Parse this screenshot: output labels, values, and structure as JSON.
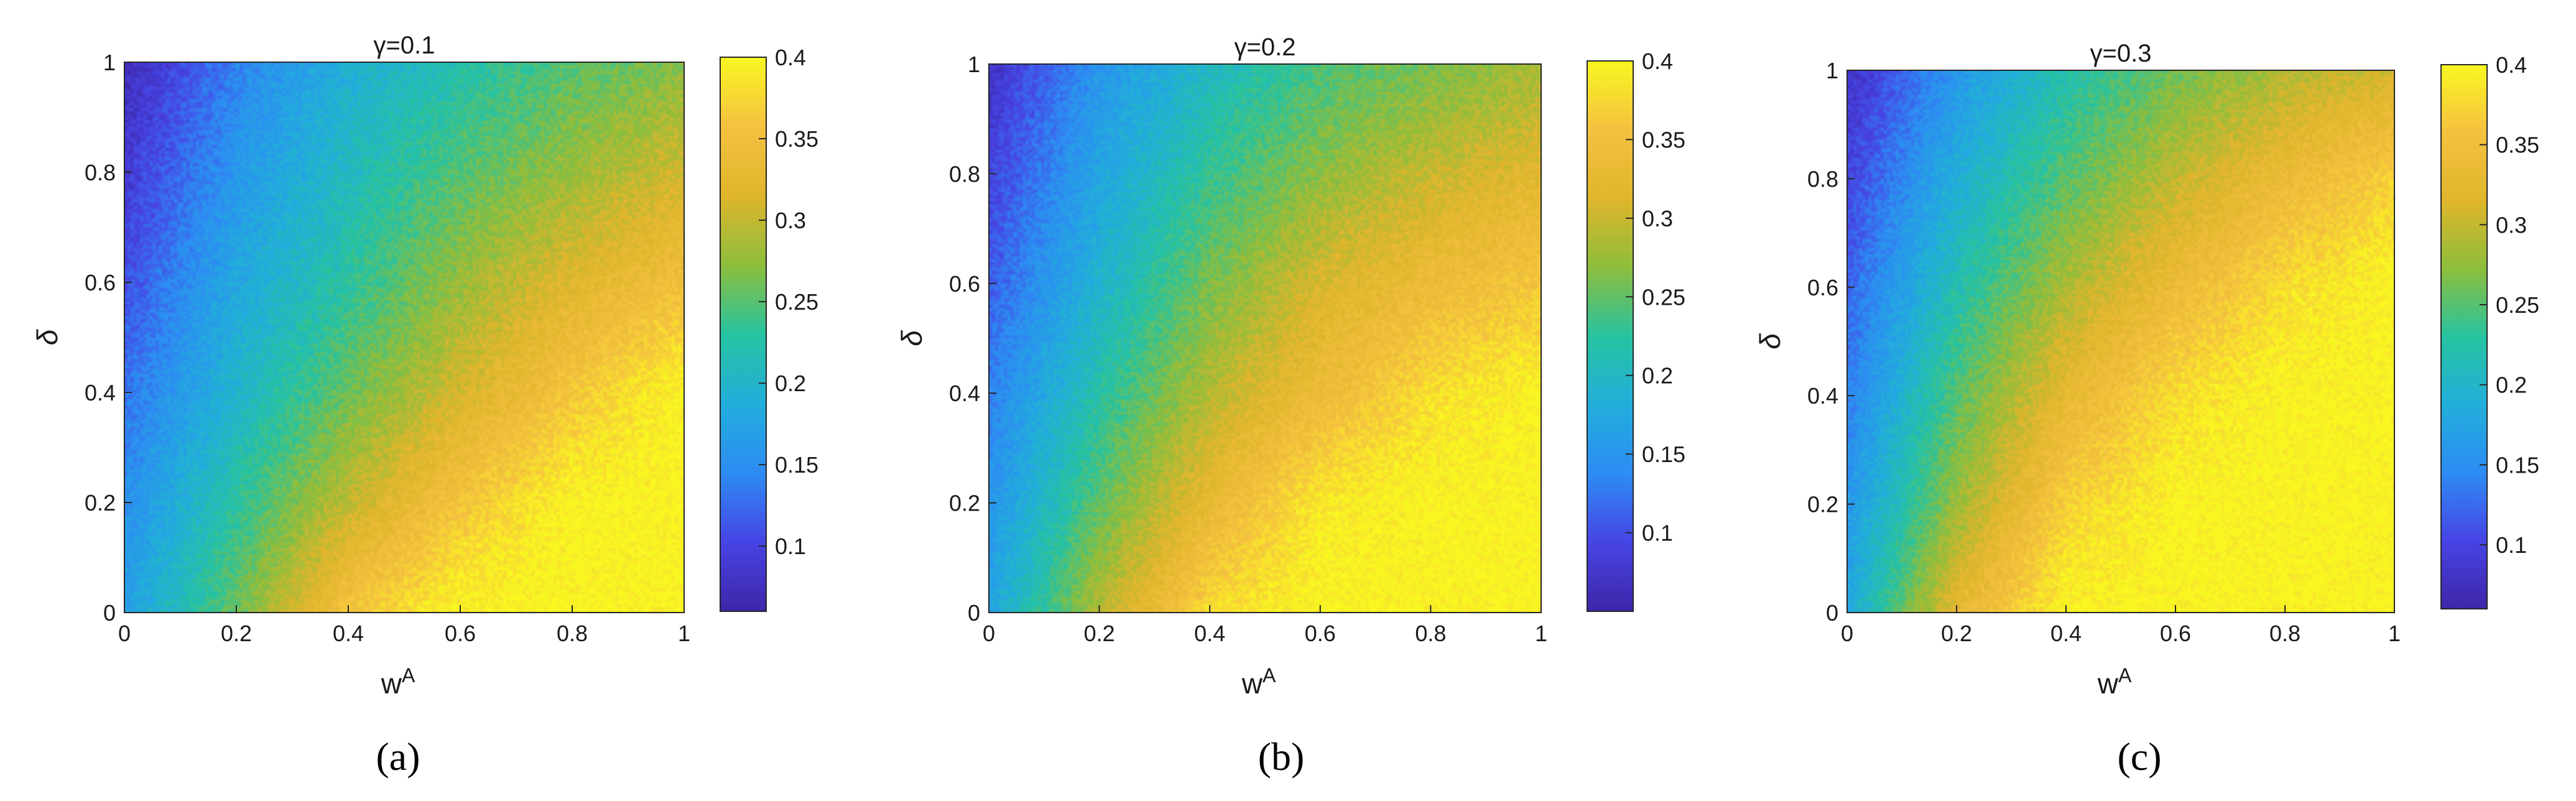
{
  "colors": {
    "colormap": "parula",
    "stops": [
      "#3e26a8",
      "#4744e5",
      "#2d8cf3",
      "#22aedb",
      "#27c3a0",
      "#8dbe3c",
      "#e0b52c",
      "#f5c140",
      "#f9f721"
    ]
  },
  "chart_data": [
    {
      "type": "heatmap",
      "title": "γ=0.1",
      "panel_label": "(a)",
      "xlabel": "w",
      "xlabel_sup": "A",
      "ylabel": "δ",
      "xlim": [
        0,
        1
      ],
      "ylim": [
        0,
        1
      ],
      "xticks": [
        "0",
        "0.2",
        "0.4",
        "0.6",
        "0.8",
        "1"
      ],
      "yticks": [
        "0",
        "0.2",
        "0.4",
        "0.6",
        "0.8",
        "1"
      ],
      "colorbar": {
        "range": [
          0.06,
          0.4
        ],
        "ticks": [
          "0.1",
          "0.15",
          "0.2",
          "0.25",
          "0.3",
          "0.35",
          "0.4"
        ]
      },
      "gamma": 0.1,
      "x": [
        0,
        0.2,
        0.4,
        0.6,
        0.8,
        1
      ],
      "y": [
        0,
        0.2,
        0.4,
        0.6,
        0.8,
        1
      ],
      "z": [
        [
          0.17,
          0.26,
          0.36,
          0.4,
          0.4,
          0.4
        ],
        [
          0.15,
          0.23,
          0.3,
          0.36,
          0.4,
          0.4
        ],
        [
          0.13,
          0.2,
          0.26,
          0.31,
          0.36,
          0.4
        ],
        [
          0.11,
          0.18,
          0.23,
          0.28,
          0.32,
          0.35
        ],
        [
          0.09,
          0.16,
          0.21,
          0.25,
          0.28,
          0.31
        ],
        [
          0.07,
          0.14,
          0.19,
          0.22,
          0.25,
          0.27
        ]
      ]
    },
    {
      "type": "heatmap",
      "title": "γ=0.2",
      "panel_label": "(b)",
      "xlabel": "w",
      "xlabel_sup": "A",
      "ylabel": "δ",
      "xlim": [
        0,
        1
      ],
      "ylim": [
        0,
        1
      ],
      "xticks": [
        "0",
        "0.2",
        "0.4",
        "0.6",
        "0.8",
        "1"
      ],
      "yticks": [
        "0",
        "0.2",
        "0.4",
        "0.6",
        "0.8",
        "1"
      ],
      "colorbar": {
        "range": [
          0.05,
          0.4
        ],
        "ticks": [
          "0.1",
          "0.15",
          "0.2",
          "0.25",
          "0.3",
          "0.35",
          "0.4"
        ]
      },
      "gamma": 0.2,
      "x": [
        0,
        0.2,
        0.4,
        0.6,
        0.8,
        1
      ],
      "y": [
        0,
        0.2,
        0.4,
        0.6,
        0.8,
        1
      ],
      "z": [
        [
          0.17,
          0.29,
          0.38,
          0.4,
          0.4,
          0.4
        ],
        [
          0.15,
          0.25,
          0.33,
          0.39,
          0.4,
          0.4
        ],
        [
          0.13,
          0.22,
          0.29,
          0.34,
          0.38,
          0.4
        ],
        [
          0.11,
          0.19,
          0.26,
          0.31,
          0.34,
          0.36
        ],
        [
          0.09,
          0.17,
          0.23,
          0.27,
          0.3,
          0.32
        ],
        [
          0.07,
          0.15,
          0.2,
          0.24,
          0.26,
          0.28
        ]
      ]
    },
    {
      "type": "heatmap",
      "title": "γ=0.3",
      "panel_label": "(c)",
      "xlabel": "w",
      "xlabel_sup": "A",
      "ylabel": "δ",
      "xlim": [
        0,
        1
      ],
      "ylim": [
        0,
        1
      ],
      "xticks": [
        "0",
        "0.2",
        "0.4",
        "0.6",
        "0.8",
        "1"
      ],
      "yticks": [
        "0",
        "0.2",
        "0.4",
        "0.6",
        "0.8",
        "1"
      ],
      "colorbar": {
        "range": [
          0.06,
          0.4
        ],
        "ticks": [
          "0.1",
          "0.15",
          "0.2",
          "0.25",
          "0.3",
          "0.35",
          "0.4"
        ]
      },
      "gamma": 0.3,
      "x": [
        0,
        0.2,
        0.4,
        0.6,
        0.8,
        1
      ],
      "y": [
        0,
        0.2,
        0.4,
        0.6,
        0.8,
        1
      ],
      "z": [
        [
          0.18,
          0.33,
          0.4,
          0.4,
          0.4,
          0.4
        ],
        [
          0.16,
          0.28,
          0.37,
          0.4,
          0.4,
          0.4
        ],
        [
          0.14,
          0.25,
          0.33,
          0.38,
          0.4,
          0.4
        ],
        [
          0.12,
          0.22,
          0.29,
          0.34,
          0.38,
          0.4
        ],
        [
          0.1,
          0.19,
          0.25,
          0.3,
          0.34,
          0.37
        ],
        [
          0.08,
          0.16,
          0.22,
          0.26,
          0.29,
          0.31
        ]
      ]
    }
  ]
}
